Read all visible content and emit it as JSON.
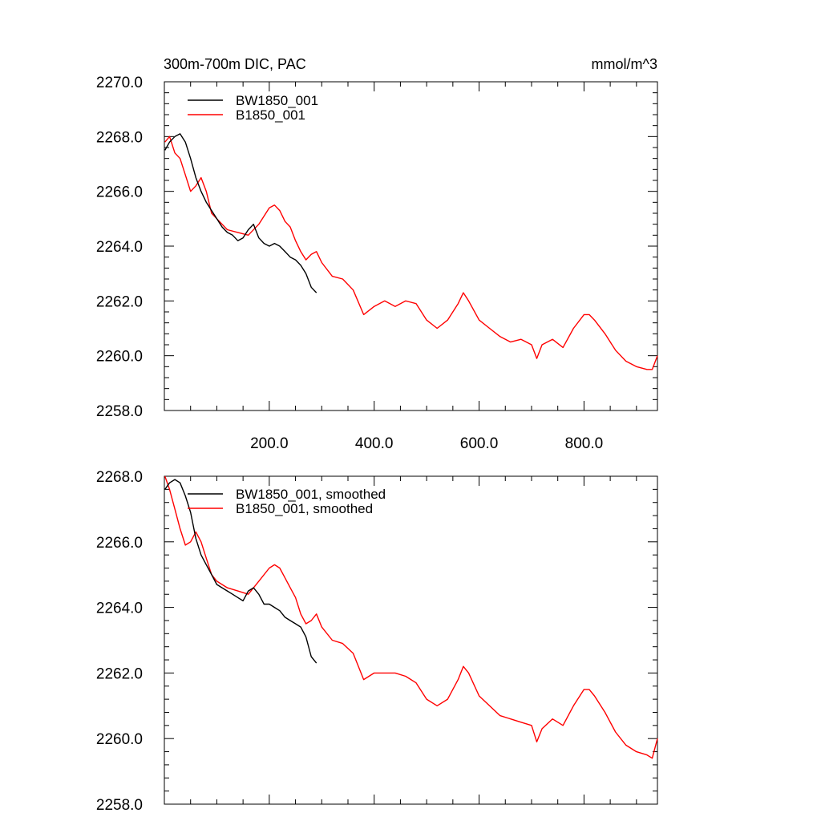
{
  "chart_data": [
    {
      "type": "line",
      "title": "300m-700m DIC, PAC",
      "units": "mmol/m^3",
      "xlim": [
        0,
        940
      ],
      "ylim": [
        2258.0,
        2270.0
      ],
      "xticks": [
        200.0,
        400.0,
        600.0,
        800.0
      ],
      "xtick_labels": [
        "200.0",
        "400.0",
        "600.0",
        "800.0"
      ],
      "yticks": [
        2258.0,
        2260.0,
        2262.0,
        2264.0,
        2266.0,
        2268.0,
        2270.0
      ],
      "ytick_labels": [
        "2258.0",
        "2260.0",
        "2262.0",
        "2264.0",
        "2266.0",
        "2268.0",
        "2270.0"
      ],
      "series": [
        {
          "name": "BW1850_001",
          "color": "#000000",
          "x": [
            1,
            10,
            20,
            30,
            40,
            50,
            60,
            70,
            80,
            90,
            100,
            110,
            120,
            130,
            140,
            150,
            160,
            170,
            180,
            190,
            200,
            210,
            220,
            230,
            240,
            250,
            260,
            270,
            280,
            290
          ],
          "y": [
            2267.5,
            2267.8,
            2268.0,
            2268.1,
            2267.8,
            2267.2,
            2266.5,
            2266.0,
            2265.6,
            2265.3,
            2265.0,
            2264.7,
            2264.5,
            2264.4,
            2264.2,
            2264.3,
            2264.6,
            2264.8,
            2264.3,
            2264.1,
            2264.0,
            2264.1,
            2264.0,
            2263.8,
            2263.6,
            2263.5,
            2263.3,
            2263.0,
            2262.5,
            2262.3
          ]
        },
        {
          "name": "B1850_001",
          "color": "#ff0000",
          "x": [
            1,
            10,
            20,
            30,
            40,
            50,
            60,
            70,
            80,
            90,
            100,
            120,
            140,
            160,
            180,
            200,
            210,
            220,
            230,
            240,
            250,
            260,
            270,
            280,
            290,
            300,
            320,
            340,
            360,
            380,
            400,
            420,
            440,
            460,
            480,
            500,
            520,
            540,
            560,
            570,
            580,
            600,
            620,
            640,
            660,
            680,
            700,
            710,
            720,
            740,
            760,
            780,
            800,
            810,
            820,
            840,
            860,
            880,
            900,
            920,
            930,
            940
          ],
          "y": [
            2267.8,
            2268.0,
            2267.4,
            2267.2,
            2266.6,
            2266.0,
            2266.2,
            2266.5,
            2266.0,
            2265.2,
            2265.0,
            2264.6,
            2264.5,
            2264.4,
            2264.8,
            2265.4,
            2265.5,
            2265.3,
            2264.9,
            2264.7,
            2264.2,
            2263.8,
            2263.5,
            2263.7,
            2263.8,
            2263.4,
            2262.9,
            2262.8,
            2262.4,
            2261.5,
            2261.8,
            2262.0,
            2261.8,
            2262.0,
            2261.9,
            2261.3,
            2261.0,
            2261.3,
            2261.9,
            2262.3,
            2262.0,
            2261.3,
            2261.0,
            2260.7,
            2260.5,
            2260.6,
            2260.4,
            2259.9,
            2260.4,
            2260.6,
            2260.3,
            2261.0,
            2261.5,
            2261.5,
            2261.3,
            2260.8,
            2260.2,
            2259.8,
            2259.6,
            2259.5,
            2259.5,
            2260.0
          ]
        }
      ]
    },
    {
      "type": "line",
      "title": "",
      "xlim": [
        0,
        940
      ],
      "ylim": [
        2258.0,
        2268.0
      ],
      "yticks": [
        2258.0,
        2260.0,
        2262.0,
        2264.0,
        2266.0,
        2268.0
      ],
      "ytick_labels": [
        "2258.0",
        "2260.0",
        "2262.0",
        "2264.0",
        "2266.0",
        "2268.0"
      ],
      "series": [
        {
          "name": "BW1850_001, smoothed",
          "color": "#000000",
          "x": [
            1,
            10,
            20,
            30,
            40,
            50,
            60,
            70,
            80,
            90,
            100,
            110,
            120,
            130,
            140,
            150,
            160,
            170,
            180,
            190,
            200,
            210,
            220,
            230,
            240,
            250,
            260,
            270,
            280,
            290
          ],
          "y": [
            2267.6,
            2267.8,
            2267.9,
            2267.8,
            2267.4,
            2266.9,
            2266.1,
            2265.6,
            2265.3,
            2265.0,
            2264.7,
            2264.6,
            2264.5,
            2264.4,
            2264.3,
            2264.2,
            2264.5,
            2264.6,
            2264.4,
            2264.1,
            2264.1,
            2264.0,
            2263.9,
            2263.7,
            2263.6,
            2263.5,
            2263.4,
            2263.1,
            2262.5,
            2262.3
          ]
        },
        {
          "name": "B1850_001, smoothed",
          "color": "#ff0000",
          "x": [
            1,
            10,
            20,
            30,
            40,
            50,
            60,
            70,
            80,
            90,
            100,
            120,
            140,
            160,
            180,
            200,
            210,
            220,
            230,
            240,
            250,
            260,
            270,
            280,
            290,
            300,
            320,
            340,
            360,
            380,
            400,
            420,
            440,
            460,
            480,
            500,
            520,
            540,
            560,
            570,
            580,
            600,
            620,
            640,
            660,
            680,
            700,
            710,
            720,
            740,
            760,
            780,
            800,
            810,
            820,
            840,
            860,
            880,
            900,
            920,
            930,
            940
          ],
          "y": [
            2268.0,
            2267.6,
            2267.0,
            2266.4,
            2265.9,
            2266.0,
            2266.3,
            2266.0,
            2265.5,
            2265.0,
            2264.8,
            2264.6,
            2264.5,
            2264.4,
            2264.8,
            2265.2,
            2265.3,
            2265.2,
            2264.9,
            2264.6,
            2264.3,
            2263.8,
            2263.5,
            2263.6,
            2263.8,
            2263.4,
            2263.0,
            2262.9,
            2262.6,
            2261.8,
            2262.0,
            2262.0,
            2262.0,
            2261.9,
            2261.7,
            2261.2,
            2261.0,
            2261.2,
            2261.8,
            2262.2,
            2262.0,
            2261.3,
            2261.0,
            2260.7,
            2260.6,
            2260.5,
            2260.4,
            2259.9,
            2260.3,
            2260.6,
            2260.4,
            2261.0,
            2261.5,
            2261.5,
            2261.3,
            2260.8,
            2260.2,
            2259.8,
            2259.6,
            2259.5,
            2259.4,
            2260.0
          ]
        }
      ]
    }
  ]
}
